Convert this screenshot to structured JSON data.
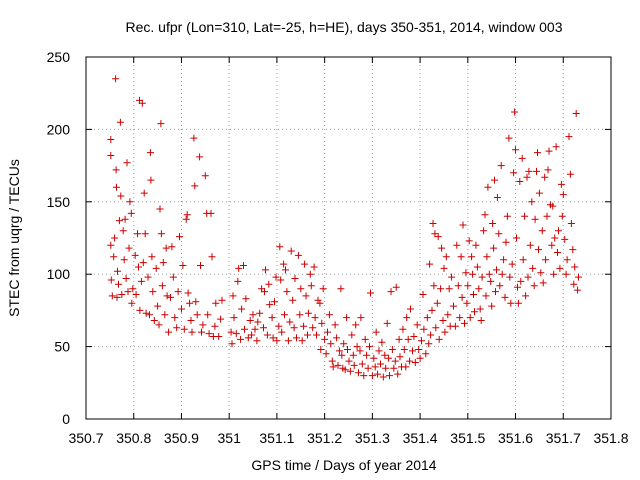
{
  "chart_data": {
    "type": "scatter",
    "title": "Rec. ufpr (Lon=310, Lat=-25, h=HE), days 350-351, 2014, window 003",
    "xlabel": "GPS time / Days of year 2014",
    "ylabel": "STEC from uqrg / TECUs",
    "xlim": [
      350.7,
      351.8
    ],
    "ylim": [
      0,
      250
    ],
    "xticks": [
      350.7,
      350.8,
      350.9,
      351,
      351.1,
      351.2,
      351.3,
      351.4,
      351.5,
      351.6,
      351.7,
      351.8
    ],
    "xtick_labels": [
      "350.7",
      "350.8",
      "350.9",
      "351",
      "351.1",
      "351.2",
      "351.3",
      "351.4",
      "351.5",
      "351.6",
      "351.7",
      "351.8"
    ],
    "yticks": [
      0,
      50,
      100,
      150,
      200,
      250
    ],
    "ytick_labels": [
      "0",
      "50",
      "100",
      "150",
      "200",
      "250"
    ],
    "grid": true,
    "marker": "plus",
    "color": "#cc0000",
    "points": [
      [
        350.752,
        193
      ],
      [
        350.752,
        182
      ],
      [
        350.752,
        120
      ],
      [
        350.753,
        96
      ],
      [
        350.755,
        85
      ],
      [
        350.758,
        112
      ],
      [
        350.76,
        125
      ],
      [
        350.762,
        235
      ],
      [
        350.763,
        172
      ],
      [
        350.764,
        160
      ],
      [
        350.765,
        84
      ],
      [
        350.766,
        102
      ],
      [
        350.768,
        93
      ],
      [
        350.77,
        137
      ],
      [
        350.772,
        205
      ],
      [
        350.773,
        154
      ],
      [
        350.775,
        86
      ],
      [
        350.778,
        130
      ],
      [
        350.78,
        110
      ],
      [
        350.782,
        138
      ],
      [
        350.784,
        97
      ],
      [
        350.786,
        177
      ],
      [
        350.788,
        88
      ],
      [
        350.79,
        118
      ],
      [
        350.792,
        150
      ],
      [
        350.795,
        142
      ],
      [
        350.796,
        80
      ],
      [
        350.798,
        90
      ],
      [
        350.803,
        113
      ],
      [
        350.805,
        86
      ],
      [
        350.808,
        128
      ],
      [
        350.81,
        105
      ],
      [
        350.812,
        220
      ],
      [
        350.813,
        75
      ],
      [
        350.816,
        95
      ],
      [
        350.818,
        218
      ],
      [
        350.82,
        108
      ],
      [
        350.822,
        156
      ],
      [
        350.824,
        128
      ],
      [
        350.826,
        73
      ],
      [
        350.83,
        98
      ],
      [
        350.833,
        72
      ],
      [
        350.835,
        184
      ],
      [
        350.836,
        165
      ],
      [
        350.838,
        112
      ],
      [
        350.84,
        88
      ],
      [
        350.843,
        68
      ],
      [
        350.847,
        104
      ],
      [
        350.85,
        78
      ],
      [
        350.853,
        65
      ],
      [
        350.855,
        145
      ],
      [
        350.857,
        204
      ],
      [
        350.858,
        128
      ],
      [
        350.86,
        92
      ],
      [
        350.862,
        108
      ],
      [
        350.865,
        72
      ],
      [
        350.868,
        118
      ],
      [
        350.87,
        85
      ],
      [
        350.873,
        60
      ],
      [
        350.877,
        84
      ],
      [
        350.88,
        119
      ],
      [
        350.883,
        98
      ],
      [
        350.886,
        70
      ],
      [
        350.89,
        63
      ],
      [
        350.893,
        88
      ],
      [
        350.896,
        126
      ],
      [
        350.9,
        76
      ],
      [
        350.903,
        106
      ],
      [
        350.906,
        62
      ],
      [
        350.91,
        138
      ],
      [
        350.912,
        141
      ],
      [
        350.914,
        87
      ],
      [
        350.917,
        80
      ],
      [
        350.92,
        68
      ],
      [
        350.922,
        60
      ],
      [
        350.926,
        194
      ],
      [
        350.928,
        161
      ],
      [
        350.93,
        81
      ],
      [
        350.933,
        72
      ],
      [
        350.938,
        181
      ],
      [
        350.94,
        106
      ],
      [
        350.942,
        60
      ],
      [
        350.945,
        65
      ],
      [
        350.95,
        168
      ],
      [
        350.953,
        142
      ],
      [
        350.955,
        72
      ],
      [
        350.958,
        59
      ],
      [
        350.962,
        142
      ],
      [
        350.964,
        112
      ],
      [
        350.967,
        57
      ],
      [
        350.97,
        64
      ],
      [
        350.972,
        80
      ],
      [
        350.978,
        57
      ],
      [
        350.982,
        69
      ],
      [
        350.985,
        82
      ],
      [
        351.004,
        60
      ],
      [
        351.006,
        52
      ],
      [
        351.008,
        85
      ],
      [
        351.01,
        70
      ],
      [
        351.015,
        59
      ],
      [
        351.018,
        95
      ],
      [
        351.02,
        104
      ],
      [
        351.024,
        55
      ],
      [
        351.026,
        76
      ],
      [
        351.03,
        106
      ],
      [
        351.032,
        62
      ],
      [
        351.035,
        83
      ],
      [
        351.04,
        56
      ],
      [
        351.044,
        68
      ],
      [
        351.047,
        58
      ],
      [
        351.05,
        72
      ],
      [
        351.054,
        62
      ],
      [
        351.058,
        54
      ],
      [
        351.06,
        67
      ],
      [
        351.064,
        73
      ],
      [
        351.068,
        90
      ],
      [
        351.072,
        63
      ],
      [
        351.074,
        88
      ],
      [
        351.076,
        103
      ],
      [
        351.08,
        58
      ],
      [
        351.083,
        93
      ],
      [
        351.085,
        79
      ],
      [
        351.09,
        70
      ],
      [
        351.092,
        56
      ],
      [
        351.095,
        81
      ],
      [
        351.098,
        98
      ],
      [
        351.1,
        54
      ],
      [
        351.104,
        64
      ],
      [
        351.106,
        119
      ],
      [
        351.108,
        96
      ],
      [
        351.11,
        60
      ],
      [
        351.114,
        107
      ],
      [
        351.116,
        72
      ],
      [
        351.118,
        103
      ],
      [
        351.121,
        88
      ],
      [
        351.124,
        54
      ],
      [
        351.127,
        67
      ],
      [
        351.13,
        116
      ],
      [
        351.133,
        82
      ],
      [
        351.136,
        63
      ],
      [
        351.138,
        97
      ],
      [
        351.141,
        56
      ],
      [
        351.145,
        113
      ],
      [
        351.148,
        72
      ],
      [
        351.15,
        90
      ],
      [
        351.153,
        54
      ],
      [
        351.156,
        64
      ],
      [
        351.158,
        107
      ],
      [
        351.161,
        85
      ],
      [
        351.164,
        58
      ],
      [
        351.166,
        73
      ],
      [
        351.17,
        100
      ],
      [
        351.172,
        92
      ],
      [
        351.175,
        63
      ],
      [
        351.178,
        105
      ],
      [
        351.18,
        70
      ],
      [
        351.183,
        58
      ],
      [
        351.186,
        82
      ],
      [
        351.19,
        80
      ],
      [
        351.192,
        48
      ],
      [
        351.194,
        66
      ],
      [
        351.197,
        90
      ],
      [
        351.2,
        55
      ],
      [
        351.203,
        45
      ],
      [
        351.206,
        60
      ],
      [
        351.21,
        72
      ],
      [
        351.213,
        52
      ],
      [
        351.216,
        40
      ],
      [
        351.218,
        36
      ],
      [
        351.222,
        65
      ],
      [
        351.225,
        56
      ],
      [
        351.228,
        37
      ],
      [
        351.231,
        47
      ],
      [
        351.234,
        90
      ],
      [
        351.236,
        44
      ],
      [
        351.238,
        35
      ],
      [
        351.24,
        52
      ],
      [
        351.243,
        34
      ],
      [
        351.246,
        70
      ],
      [
        351.248,
        48
      ],
      [
        351.251,
        40
      ],
      [
        351.254,
        33
      ],
      [
        351.257,
        58
      ],
      [
        351.26,
        44
      ],
      [
        351.262,
        37
      ],
      [
        351.265,
        65
      ],
      [
        351.268,
        50
      ],
      [
        351.271,
        32
      ],
      [
        351.274,
        47
      ],
      [
        351.276,
        70
      ],
      [
        351.279,
        38
      ],
      [
        351.282,
        30
      ],
      [
        351.285,
        55
      ],
      [
        351.288,
        44
      ],
      [
        351.291,
        35
      ],
      [
        351.294,
        50
      ],
      [
        351.296,
        87
      ],
      [
        351.3,
        30
      ],
      [
        351.303,
        42
      ],
      [
        351.306,
        36
      ],
      [
        351.308,
        60
      ],
      [
        351.311,
        31
      ],
      [
        351.314,
        47
      ],
      [
        351.317,
        38
      ],
      [
        351.32,
        53
      ],
      [
        351.323,
        29
      ],
      [
        351.326,
        44
      ],
      [
        351.328,
        35
      ],
      [
        351.331,
        66
      ],
      [
        351.334,
        42
      ],
      [
        351.336,
        30
      ],
      [
        351.339,
        88
      ],
      [
        351.342,
        48
      ],
      [
        351.345,
        35
      ],
      [
        351.348,
        40
      ],
      [
        351.35,
        91
      ],
      [
        351.353,
        31
      ],
      [
        351.356,
        55
      ],
      [
        351.358,
        43
      ],
      [
        351.361,
        36
      ],
      [
        351.364,
        62
      ],
      [
        351.367,
        48
      ],
      [
        351.37,
        36
      ],
      [
        351.372,
        70
      ],
      [
        351.375,
        55
      ],
      [
        351.378,
        40
      ],
      [
        351.38,
        76
      ],
      [
        351.384,
        47
      ],
      [
        351.387,
        57
      ],
      [
        351.39,
        39
      ],
      [
        351.394,
        65
      ],
      [
        351.397,
        48
      ],
      [
        351.4,
        42
      ],
      [
        351.403,
        54
      ],
      [
        351.406,
        86
      ],
      [
        351.408,
        62
      ],
      [
        351.412,
        45
      ],
      [
        351.415,
        70
      ],
      [
        351.418,
        52
      ],
      [
        351.42,
        107
      ],
      [
        351.422,
        58
      ],
      [
        351.425,
        75
      ],
      [
        351.427,
        135
      ],
      [
        351.429,
        92
      ],
      [
        351.431,
        128
      ],
      [
        351.433,
        63
      ],
      [
        351.436,
        80
      ],
      [
        351.438,
        126
      ],
      [
        351.44,
        55
      ],
      [
        351.443,
        90
      ],
      [
        351.445,
        118
      ],
      [
        351.448,
        68
      ],
      [
        351.45,
        104
      ],
      [
        351.452,
        60
      ],
      [
        351.455,
        112
      ],
      [
        351.458,
        72
      ],
      [
        351.461,
        90
      ],
      [
        351.463,
        64
      ],
      [
        351.466,
        98
      ],
      [
        351.47,
        78
      ],
      [
        351.474,
        64
      ],
      [
        351.477,
        120
      ],
      [
        351.48,
        92
      ],
      [
        351.483,
        70
      ],
      [
        351.486,
        112
      ],
      [
        351.488,
        84
      ],
      [
        351.49,
        134
      ],
      [
        351.493,
        66
      ],
      [
        351.496,
        101
      ],
      [
        351.498,
        80
      ],
      [
        351.5,
        92
      ],
      [
        351.503,
        123
      ],
      [
        351.505,
        70
      ],
      [
        351.508,
        112
      ],
      [
        351.51,
        100
      ],
      [
        351.512,
        86
      ],
      [
        351.514,
        74
      ],
      [
        351.517,
        120
      ],
      [
        351.52,
        105
      ],
      [
        351.523,
        90
      ],
      [
        351.526,
        76
      ],
      [
        351.528,
        68
      ],
      [
        351.53,
        98
      ],
      [
        351.533,
        130
      ],
      [
        351.536,
        141
      ],
      [
        351.538,
        85
      ],
      [
        351.54,
        112
      ],
      [
        351.542,
        160
      ],
      [
        351.545,
        100
      ],
      [
        351.548,
        95
      ],
      [
        351.55,
        78
      ],
      [
        351.552,
        135
      ],
      [
        351.554,
        118
      ],
      [
        351.556,
        165
      ],
      [
        351.558,
        88
      ],
      [
        351.56,
        103
      ],
      [
        351.562,
        153
      ],
      [
        351.565,
        128
      ],
      [
        351.567,
        92
      ],
      [
        351.57,
        175
      ],
      [
        351.572,
        100
      ],
      [
        351.575,
        110
      ],
      [
        351.578,
        84
      ],
      [
        351.58,
        122
      ],
      [
        351.583,
        140
      ],
      [
        351.586,
        194
      ],
      [
        351.588,
        98
      ],
      [
        351.59,
        80
      ],
      [
        351.593,
        107
      ],
      [
        351.596,
        170
      ],
      [
        351.598,
        212
      ],
      [
        351.6,
        186
      ],
      [
        351.602,
        125
      ],
      [
        351.604,
        91
      ],
      [
        351.606,
        80
      ],
      [
        351.609,
        164
      ],
      [
        351.611,
        95
      ],
      [
        351.614,
        180
      ],
      [
        351.616,
        110
      ],
      [
        351.619,
        140
      ],
      [
        351.621,
        85
      ],
      [
        351.624,
        167
      ],
      [
        351.626,
        98
      ],
      [
        351.628,
        171
      ],
      [
        351.631,
        120
      ],
      [
        351.634,
        150
      ],
      [
        351.636,
        104
      ],
      [
        351.639,
        92
      ],
      [
        351.641,
        138
      ],
      [
        351.644,
        171
      ],
      [
        351.646,
        184
      ],
      [
        351.648,
        117
      ],
      [
        351.65,
        156
      ],
      [
        351.653,
        101
      ],
      [
        351.656,
        130
      ],
      [
        351.658,
        94
      ],
      [
        351.661,
        167
      ],
      [
        351.663,
        110
      ],
      [
        351.666,
        140
      ],
      [
        351.668,
        172
      ],
      [
        351.67,
        185
      ],
      [
        351.673,
        148
      ],
      [
        351.676,
        120
      ],
      [
        351.678,
        147
      ],
      [
        351.68,
        100
      ],
      [
        351.682,
        125
      ],
      [
        351.685,
        188
      ],
      [
        351.688,
        115
      ],
      [
        351.69,
        130
      ],
      [
        351.693,
        104
      ],
      [
        351.696,
        162
      ],
      [
        351.698,
        140
      ],
      [
        351.7,
        155
      ],
      [
        351.703,
        124
      ],
      [
        351.706,
        100
      ],
      [
        351.708,
        110
      ],
      [
        351.712,
        195
      ],
      [
        351.715,
        169
      ],
      [
        351.717,
        135
      ],
      [
        351.72,
        117
      ],
      [
        351.722,
        93
      ],
      [
        351.724,
        105
      ],
      [
        351.727,
        211
      ],
      [
        351.73,
        89
      ],
      [
        351.732,
        98
      ]
    ]
  }
}
